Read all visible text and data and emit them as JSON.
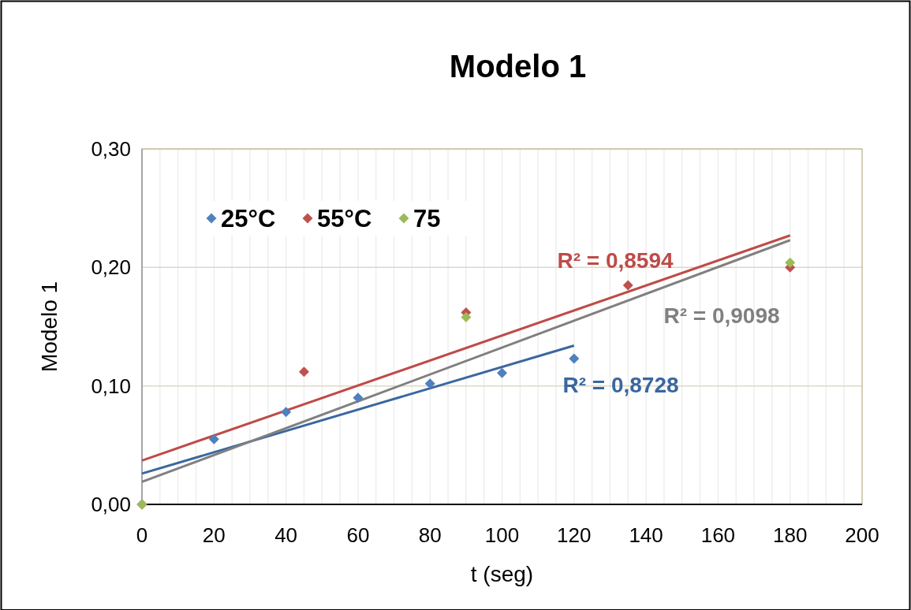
{
  "chart_data": {
    "type": "scatter",
    "title": "Modelo 1",
    "xlabel": "t (seg)",
    "ylabel": "Modelo 1",
    "xlim": [
      0,
      200
    ],
    "xticks": [
      0,
      20,
      40,
      60,
      80,
      100,
      120,
      140,
      160,
      180,
      200
    ],
    "ylim": [
      0,
      0.3
    ],
    "yticks": [
      {
        "value": 0,
        "label": "0,00"
      },
      {
        "value": 0.1,
        "label": "0,10"
      },
      {
        "value": 0.2,
        "label": "0,20"
      },
      {
        "value": 0.3,
        "label": "0,30"
      }
    ],
    "grid": true,
    "legend": "top left",
    "series": [
      {
        "name": "25°C",
        "marker": "diamond",
        "color": "#4f81bd",
        "x": [
          0,
          20,
          40,
          60,
          80,
          100,
          120
        ],
        "values": [
          0,
          0.055,
          0.078,
          0.09,
          0.102,
          0.111,
          0.123
        ]
      },
      {
        "name": "55°C",
        "marker": "diamond",
        "color": "#c0504d",
        "x": [
          0,
          45,
          90,
          135,
          180
        ],
        "values": [
          0,
          0.112,
          0.162,
          0.185,
          0.2
        ]
      },
      {
        "name": "75",
        "marker": "diamond",
        "color": "#9bbb59",
        "x": [
          0,
          90,
          180
        ],
        "values": [
          0,
          0.158,
          0.204
        ]
      },
      {
        "type": "line",
        "color": "#3a67a0",
        "x": [
          0,
          120
        ],
        "values": [
          0.026,
          0.134
        ]
      },
      {
        "type": "line",
        "color": "#be4b48",
        "x": [
          0,
          180
        ],
        "values": [
          0.037,
          0.227
        ]
      },
      {
        "type": "line",
        "color": "#808080",
        "x": [
          0,
          180
        ],
        "values": [
          0.019,
          0.223
        ]
      }
    ],
    "annotations": [
      "R² = 0,8728",
      "R² = 0,8594",
      "R² = 0,9098"
    ]
  }
}
